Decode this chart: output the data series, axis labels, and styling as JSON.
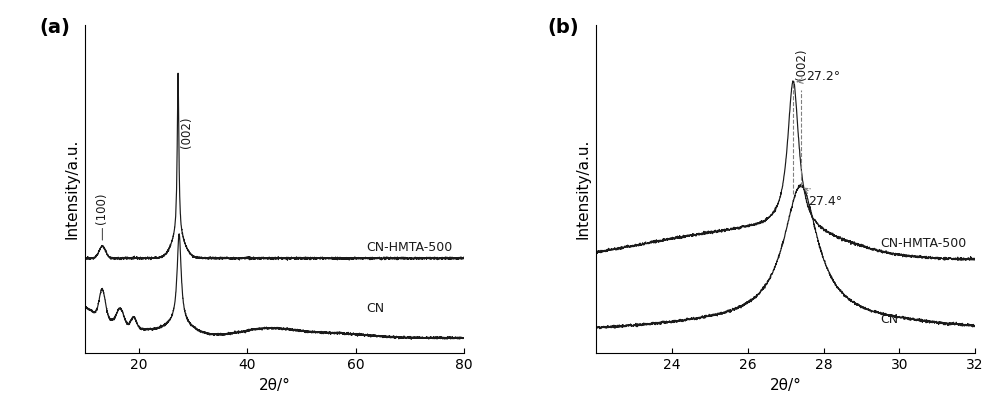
{
  "panel_a": {
    "xlabel": "2θ/°",
    "ylabel": "Intensity/a.u.",
    "label": "(a)",
    "xlim": [
      10,
      80
    ],
    "xticks": [
      20,
      40,
      60,
      80
    ],
    "cn_hmta_label": "CN-HMTA-500",
    "cn_label": "CN",
    "peak_100_label": "(100)",
    "peak_002_label": "(002)"
  },
  "panel_b": {
    "xlabel": "2θ/°",
    "ylabel": "Intensity/a.u.",
    "label": "(b)",
    "xlim": [
      22,
      32
    ],
    "xticks": [
      24,
      26,
      28,
      30,
      32
    ],
    "cn_hmta_label": "CN-HMTA-500",
    "cn_label": "CN",
    "peak_002_label": "(002)",
    "peak_272_label": "27.2°",
    "peak_274_label": "27.4°"
  },
  "line_color": "#1a1a1a",
  "annotation_color": "#808080",
  "bg_color": "#ffffff",
  "font_size_label": 11,
  "font_size_tick": 10,
  "font_size_panel": 14
}
